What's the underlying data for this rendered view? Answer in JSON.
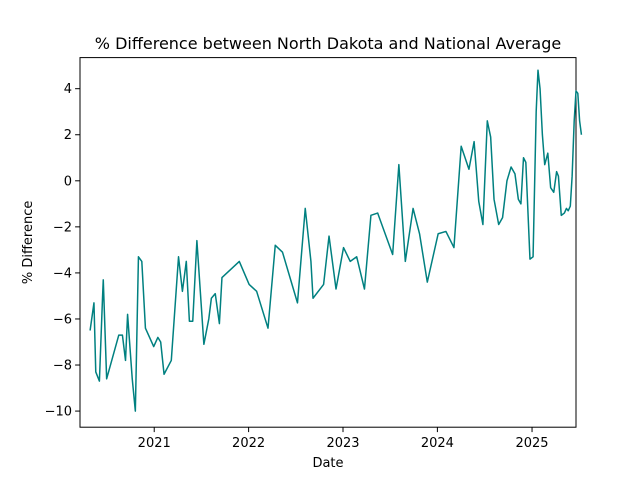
{
  "chart_data": {
    "type": "line",
    "title": "% Difference between North Dakota and National Average",
    "xlabel": "Date",
    "ylabel": "% Difference",
    "x_ticks": [
      {
        "label": "2021",
        "value": "2021-01-01"
      },
      {
        "label": "2022",
        "value": "2022-01-01"
      },
      {
        "label": "2023",
        "value": "2023-01-01"
      },
      {
        "label": "2024",
        "value": "2024-01-01"
      },
      {
        "label": "2025",
        "value": "2025-01-01"
      }
    ],
    "y_ticks": [
      -10,
      -8,
      -6,
      -4,
      -2,
      0,
      2,
      4
    ],
    "xlim": [
      "2020-03-20",
      "2025-06-20"
    ],
    "ylim": [
      -10.7,
      5.35
    ],
    "grid": false,
    "series": [
      {
        "color": "#008080",
        "points": [
          [
            "2020-04-28",
            -6.5
          ],
          [
            "2020-05-13",
            -5.3
          ],
          [
            "2020-05-20",
            -8.3
          ],
          [
            "2020-06-03",
            -8.7
          ],
          [
            "2020-06-15",
            -5.1
          ],
          [
            "2020-06-18",
            -4.3
          ],
          [
            "2020-07-01",
            -8.6
          ],
          [
            "2020-08-17",
            -6.7
          ],
          [
            "2020-08-31",
            -6.7
          ],
          [
            "2020-09-12",
            -7.8
          ],
          [
            "2020-09-20",
            -5.8
          ],
          [
            "2020-10-08",
            -8.6
          ],
          [
            "2020-10-20",
            -10.0
          ],
          [
            "2020-11-01",
            -3.3
          ],
          [
            "2020-11-14",
            -3.5
          ],
          [
            "2020-11-28",
            -6.4
          ],
          [
            "2020-12-30",
            -7.2
          ],
          [
            "2021-01-15",
            -6.8
          ],
          [
            "2021-01-26",
            -7.0
          ],
          [
            "2021-02-08",
            -8.4
          ],
          [
            "2021-03-08",
            -7.8
          ],
          [
            "2021-04-05",
            -3.3
          ],
          [
            "2021-04-20",
            -4.8
          ],
          [
            "2021-05-05",
            -3.5
          ],
          [
            "2021-05-17",
            -6.1
          ],
          [
            "2021-05-30",
            -6.1
          ],
          [
            "2021-06-15",
            -2.6
          ],
          [
            "2021-07-12",
            -7.1
          ],
          [
            "2021-07-31",
            -6.0
          ],
          [
            "2021-08-10",
            -5.1
          ],
          [
            "2021-08-25",
            -4.9
          ],
          [
            "2021-09-10",
            -6.2
          ],
          [
            "2021-09-20",
            -4.2
          ],
          [
            "2021-11-26",
            -3.5
          ],
          [
            "2022-01-03",
            -4.5
          ],
          [
            "2022-02-01",
            -4.8
          ],
          [
            "2022-03-17",
            -6.4
          ],
          [
            "2022-04-14",
            -2.8
          ],
          [
            "2022-05-12",
            -3.1
          ],
          [
            "2022-07-09",
            -5.3
          ],
          [
            "2022-08-08",
            -1.2
          ],
          [
            "2022-08-30",
            -3.5
          ],
          [
            "2022-09-07",
            -5.1
          ],
          [
            "2022-10-18",
            -4.5
          ],
          [
            "2022-11-08",
            -2.4
          ],
          [
            "2022-12-05",
            -4.7
          ],
          [
            "2023-01-03",
            -2.9
          ],
          [
            "2023-01-29",
            -3.5
          ],
          [
            "2023-02-23",
            -3.3
          ],
          [
            "2023-03-25",
            -4.7
          ],
          [
            "2023-04-19",
            -1.5
          ],
          [
            "2023-05-15",
            -1.4
          ],
          [
            "2023-07-12",
            -3.2
          ],
          [
            "2023-08-05",
            0.7
          ],
          [
            "2023-08-30",
            -3.5
          ],
          [
            "2023-09-29",
            -1.2
          ],
          [
            "2023-10-24",
            -2.3
          ],
          [
            "2023-11-23",
            -4.4
          ],
          [
            "2024-01-04",
            -2.3
          ],
          [
            "2024-02-03",
            -2.2
          ],
          [
            "2024-03-05",
            -2.9
          ],
          [
            "2024-04-02",
            1.5
          ],
          [
            "2024-05-02",
            0.5
          ],
          [
            "2024-05-22",
            1.7
          ],
          [
            "2024-06-09",
            -0.9
          ],
          [
            "2024-06-25",
            -1.9
          ],
          [
            "2024-07-12",
            2.6
          ],
          [
            "2024-07-25",
            1.9
          ],
          [
            "2024-08-07",
            -0.8
          ],
          [
            "2024-08-25",
            -1.9
          ],
          [
            "2024-09-09",
            -1.6
          ],
          [
            "2024-09-26",
            0.0
          ],
          [
            "2024-10-12",
            0.6
          ],
          [
            "2024-10-27",
            0.3
          ],
          [
            "2024-11-09",
            -0.8
          ],
          [
            "2024-11-19",
            -1.0
          ],
          [
            "2024-11-29",
            1.0
          ],
          [
            "2024-12-08",
            0.8
          ],
          [
            "2024-12-24",
            -3.4
          ],
          [
            "2025-01-05",
            -3.3
          ],
          [
            "2025-01-17",
            3.0
          ],
          [
            "2025-01-24",
            4.8
          ],
          [
            "2025-02-01",
            4.0
          ],
          [
            "2025-02-10",
            2.0
          ],
          [
            "2025-02-19",
            0.7
          ],
          [
            "2025-03-03",
            1.2
          ],
          [
            "2025-03-14",
            -0.3
          ],
          [
            "2025-03-26",
            -0.5
          ],
          [
            "2025-04-06",
            0.4
          ],
          [
            "2025-04-13",
            0.2
          ],
          [
            "2025-04-24",
            -1.5
          ],
          [
            "2025-05-06",
            -1.4
          ],
          [
            "2025-05-14",
            -1.2
          ],
          [
            "2025-05-21",
            -1.3
          ],
          [
            "2025-05-29",
            -1.1
          ],
          [
            "2025-06-05",
            0.2
          ],
          [
            "2025-06-13",
            2.6
          ],
          [
            "2025-06-20",
            3.9
          ],
          [
            "2025-06-27",
            3.8
          ],
          [
            "2025-07-04",
            2.6
          ],
          [
            "2025-07-11",
            2.0
          ]
        ]
      }
    ]
  }
}
